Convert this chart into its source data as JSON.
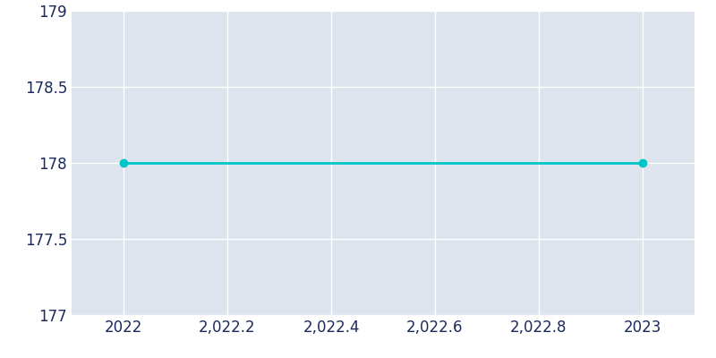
{
  "x": [
    2022,
    2023
  ],
  "y": [
    178,
    178
  ],
  "line_color": "#00C5C8",
  "marker_color": "#00C5C8",
  "line_width": 2,
  "marker_size": 6,
  "xlim": [
    2021.9,
    2023.1
  ],
  "ylim": [
    177,
    179
  ],
  "yticks": [
    177,
    177.5,
    178,
    178.5,
    179
  ],
  "xticks": [
    2022,
    2022.2,
    2022.4,
    2022.6,
    2022.8,
    2023
  ],
  "axes_facecolor": "#DDE4EE",
  "figure_facecolor": "#FFFFFF",
  "tick_color": "#1B2A5A",
  "grid_color": "#FFFFFF",
  "tick_fontsize": 12
}
